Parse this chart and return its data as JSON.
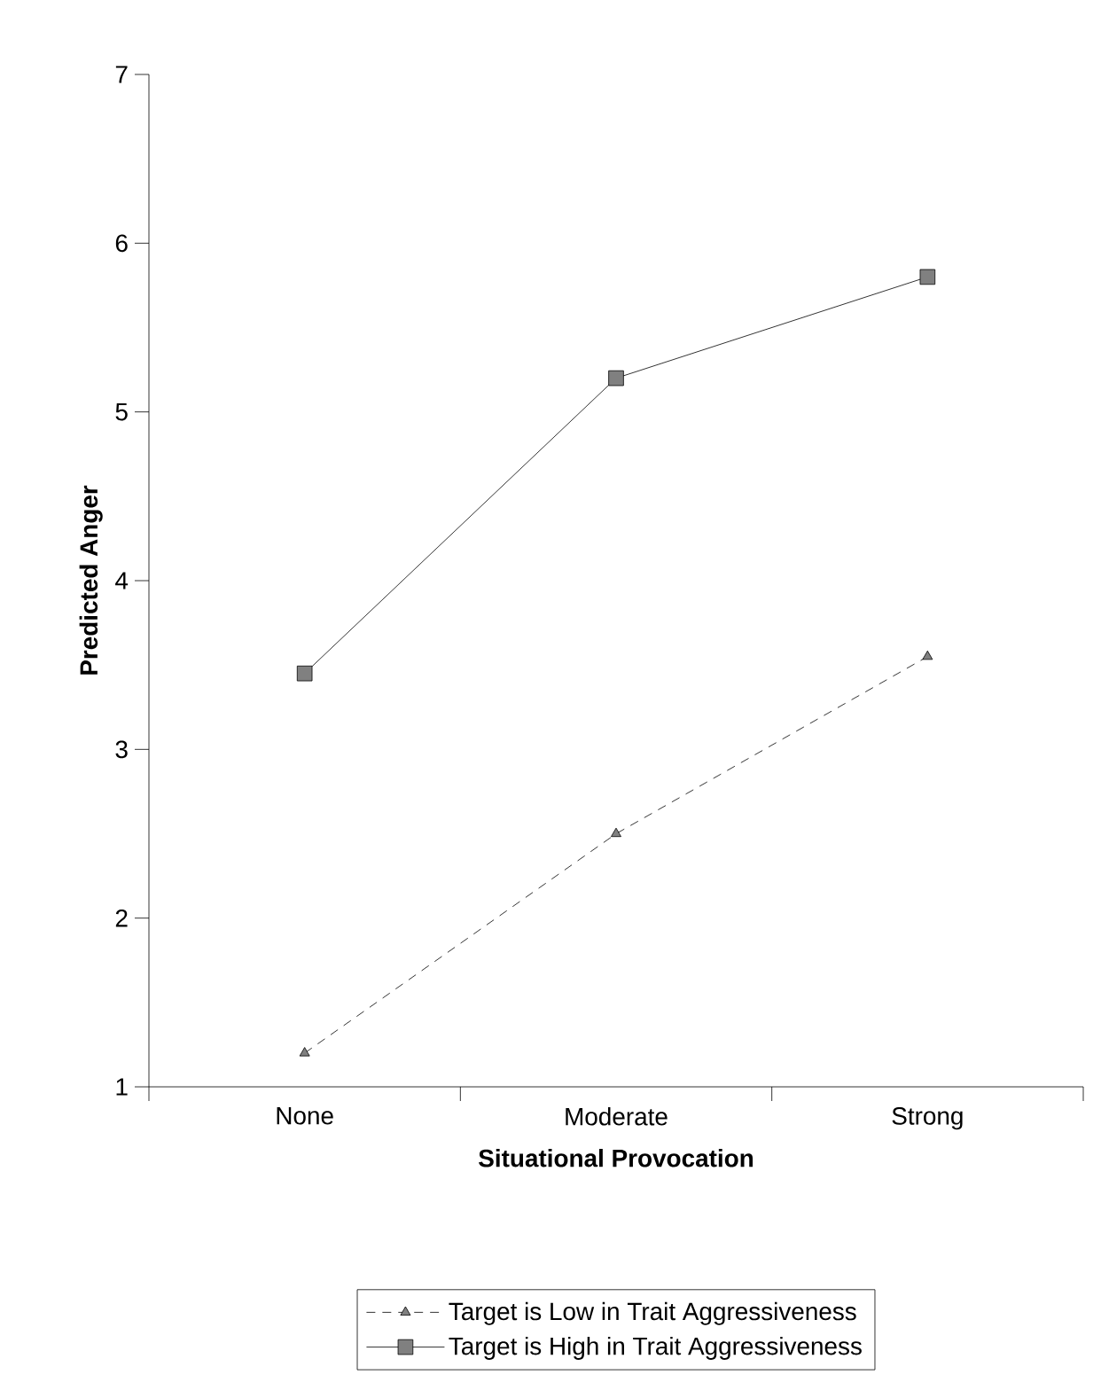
{
  "chart_data": {
    "type": "line",
    "xlabel": "Situational Provocation",
    "ylabel": "Predicted Anger",
    "categories": [
      "None",
      "Moderate",
      "Strong"
    ],
    "series": [
      {
        "name": "Target is Low in Trait Aggressiveness",
        "color": "#808080",
        "values": [
          1.2,
          2.5,
          3.55
        ],
        "marker": "triangle",
        "line_style": "dashed"
      },
      {
        "name": "Target is High in Trait Aggressiveness",
        "color": "#808080",
        "values": [
          3.45,
          5.2,
          5.8
        ],
        "marker": "square",
        "line_style": "solid"
      }
    ],
    "ylim": [
      1,
      7
    ],
    "yticks": [
      1,
      2,
      3,
      4,
      5,
      6,
      7
    ],
    "grid": false,
    "legend": "bottom"
  }
}
